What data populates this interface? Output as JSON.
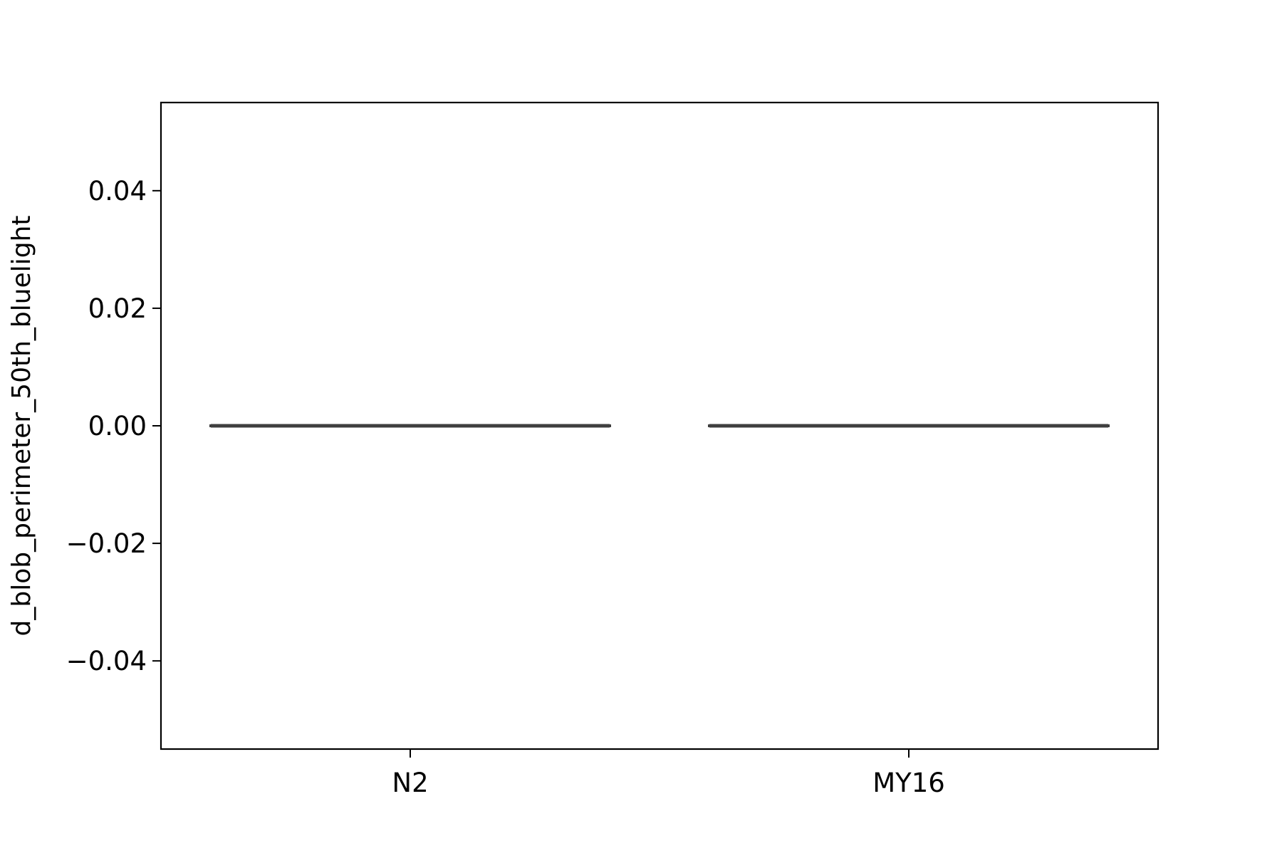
{
  "chart_data": {
    "type": "box",
    "title": "",
    "xlabel": "",
    "ylabel": "d_blob_perimeter_50th_bluelight",
    "categories": [
      "N2",
      "MY16"
    ],
    "series": [
      {
        "values": [
          {
            "category": "N2",
            "whisker_low": 0.0,
            "q1": 0.0,
            "median": 0.0,
            "q3": 0.0,
            "whisker_high": 0.0
          },
          {
            "category": "MY16",
            "whisker_low": 0.0,
            "q1": 0.0,
            "median": 0.0,
            "q3": 0.0,
            "whisker_high": 0.0
          }
        ]
      }
    ],
    "ylim": [
      -0.055,
      0.055
    ],
    "yticks": [
      -0.04,
      -0.02,
      0.0,
      0.02,
      0.04
    ],
    "ytick_labels": [
      "−0.04",
      "−0.02",
      "0.00",
      "0.02",
      "0.04"
    ],
    "grid": false,
    "colors": {
      "box_line": "#3f3f3f",
      "axes": "#000000"
    }
  }
}
